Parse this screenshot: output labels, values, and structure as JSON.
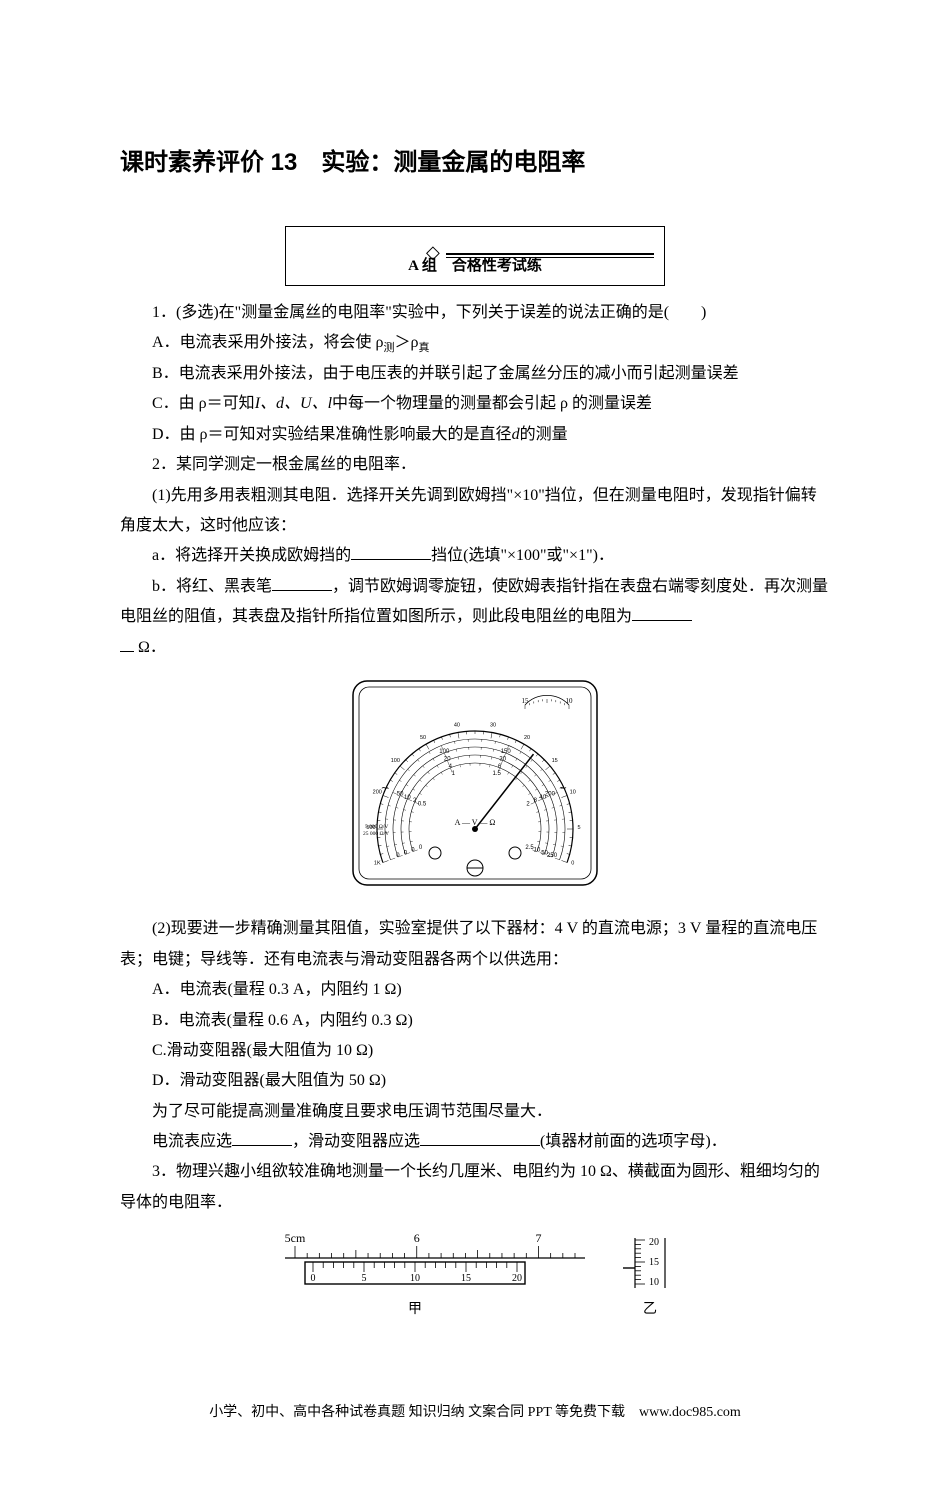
{
  "title": "课时素养评价 13　实验：测量金属的电阻率",
  "section_a": "A 组　合格性考试练",
  "q1": {
    "stem": "1．(多选)在\"测量金属丝的电阻率\"实验中，下列关于误差的说法正确的是(　　)",
    "A": "A．电流表采用外接法，将会使 ρ",
    "A_sub1": "测",
    "A_mid": "＞ρ",
    "A_sub2": "真",
    "B": "B．电流表采用外接法，由于电压表的并联引起了金属丝分压的减小而引起测量误差",
    "C_pre": "C．由 ρ＝",
    "C_mid": "可知",
    "C_vars": "I、d、U、l",
    "C_post": "中每一个物理量的测量都会引起 ρ 的测量误差",
    "D_pre": "D．由 ρ＝",
    "D_mid": "可知对实验结果准确性影响最大的是直径",
    "D_var": "d",
    "D_post": "的测量"
  },
  "q2": {
    "stem": "2．某同学测定一根金属丝的电阻率．",
    "p1": "(1)先用多用表粗测其电阻．选择开关先调到欧姆挡\"×10\"挡位，但在测量电阻时，发现指针偏转角度太大，这时他应该：",
    "a_pre": "a．将选择开关换成欧姆挡的",
    "a_post": "挡位(选填\"×100\"或\"×1\")．",
    "b_pre": "b．将红、黑表笔",
    "b_mid": "，调节欧姆调零旋钮，使欧姆表指针指在表盘右端零刻度处．再次测量电阻丝的阻值，其表盘及指针所指位置如图所示，则此段电阻丝的电阻为",
    "b_unit": " Ω．",
    "p2": "(2)现要进一步精确测量其阻值，实验室提供了以下器材：4 V 的直流电源；3 V 量程的直流电压表；电键；导线等．还有电流表与滑动变阻器各两个以供选用：",
    "optA": "A．电流表(量程 0.3 A，内阻约 1 Ω)",
    "optB": "B．电流表(量程 0.6 A，内阻约 0.3 Ω)",
    "optC": "C.滑动变阻器(最大阻值为 10 Ω)",
    "optD": "D．滑动变阻器(最大阻值为 50 Ω)",
    "p3": "为了尽可能提高测量准确度且要求电压调节范围尽量大．",
    "p4_pre": "电流表应选",
    "p4_mid": "，滑动变阻器应选",
    "p4_post": "(填器材前面的选项字母)．"
  },
  "q3": {
    "stem": "3．物理兴趣小组欲较准确地测量一个长约几厘米、电阻约为 10 Ω、横截面为圆形、粗细均匀的导体的电阻率．",
    "caliper_left": "甲",
    "caliper_right": "乙"
  },
  "footer": "小学、初中、高中各种试卷真题 知识归纳 文案合同 PPT 等免费下载　www.doc985.com",
  "multimeter": {
    "arc_labels_top_left": [
      "1K",
      "500",
      "200",
      "100",
      "50",
      "40",
      "30",
      "20"
    ],
    "arc_labels_top_right": [
      "15",
      "10",
      "5",
      "0"
    ],
    "row2_left_small": "5 000 Ω/V",
    "row2_left_small2": "25 000 Ω/V",
    "row_numbers_1": [
      "0",
      "50",
      "100",
      "150",
      "200",
      "250"
    ],
    "row_numbers_2": [
      "0",
      "10",
      "20",
      "30",
      "40",
      "50"
    ],
    "row_numbers_3": [
      "0",
      "2",
      "4",
      "6",
      "8",
      "10"
    ],
    "row_numbers_4": [
      "0",
      "0.5",
      "1",
      "1.5",
      "2",
      "2.5"
    ],
    "unit_label": "A — V — Ω",
    "tilde": "∼",
    "needle_angle_deg": 38,
    "outline_color": "#000000",
    "background": "#ffffff",
    "small_dial": [
      "15",
      "10"
    ]
  },
  "caliper": {
    "main_labels": [
      "5cm",
      "6",
      "7"
    ],
    "main_ticks_start": 5,
    "main_ticks_end": 7.3,
    "vernier_labels": [
      "0",
      "5",
      "10",
      "15",
      "20"
    ],
    "right_scale": [
      "20",
      "15",
      "10"
    ]
  }
}
